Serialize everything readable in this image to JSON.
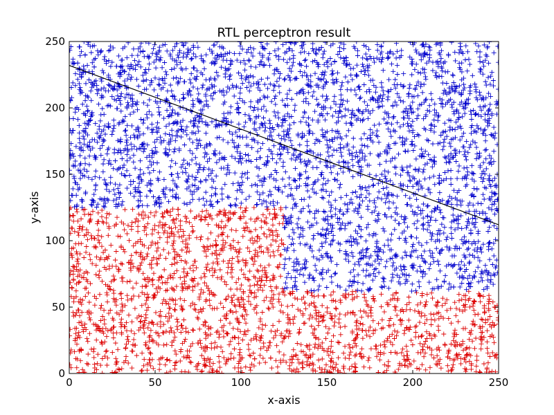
{
  "chart_data": {
    "type": "scatter",
    "title": "RTL perceptron result",
    "xlabel": "x-axis",
    "ylabel": "y-axis",
    "xlim": [
      0,
      250
    ],
    "ylim": [
      0,
      250
    ],
    "xticks": [
      "0",
      "50",
      "100",
      "150",
      "200",
      "250"
    ],
    "yticks": [
      "0",
      "50",
      "100",
      "150",
      "200",
      "250"
    ],
    "grid": false,
    "marker": "+",
    "colors": {
      "class_positive": "#0000cc",
      "class_negative": "#dd0000",
      "boundary": "#000000"
    },
    "sample_count_per_unit_area": 0.085,
    "classes": [
      {
        "color_key": "class_negative",
        "region": "y < 125 and x < 125, or y < 125 and x >= 125 and y < 62"
      },
      {
        "color_key": "class_positive",
        "region": "otherwise"
      }
    ],
    "decision_boundary": {
      "x": [
        0,
        250
      ],
      "y": [
        232,
        112
      ]
    }
  }
}
